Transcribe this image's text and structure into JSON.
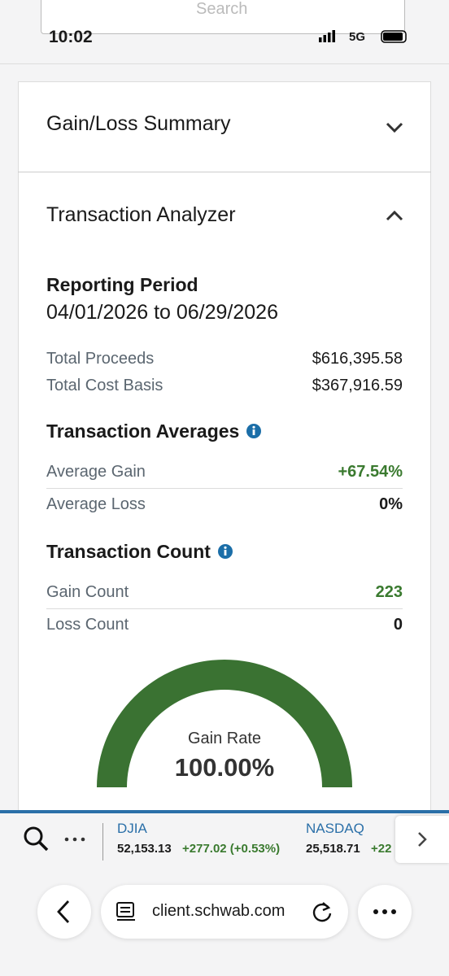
{
  "status_bar": {
    "time": "10:02",
    "network": "5G"
  },
  "search": {
    "placeholder": "Search"
  },
  "sections": {
    "gain_loss_summary": "Gain/Loss Summary",
    "transaction_analyzer": "Transaction Analyzer"
  },
  "reporting_period": {
    "title": "Reporting Period",
    "range": "04/01/2026 to 06/29/2026"
  },
  "totals": {
    "rows": [
      [
        "Total Proceeds",
        "$616,395.58"
      ],
      [
        "Total Cost Basis",
        "$367,916.59"
      ]
    ]
  },
  "transaction_averages": {
    "title": "Transaction Averages",
    "rows": [
      [
        "Average Gain",
        "+67.54%"
      ],
      [
        "Average Loss",
        "0%"
      ]
    ]
  },
  "transaction_count": {
    "title": "Transaction Count",
    "rows": [
      [
        "Gain Count",
        "223"
      ],
      [
        "Loss Count",
        "0"
      ]
    ]
  },
  "gain_rate": {
    "label": "Gain Rate",
    "value": "100.00%"
  },
  "ticker": {
    "items": [
      {
        "name": "DJIA",
        "price": "52,153.13",
        "change": "+277.02 (+0.53%)"
      },
      {
        "name": "NASDAQ",
        "price": "25,518.71",
        "change": "+22"
      }
    ]
  },
  "browser": {
    "url": "client.schwab.com"
  }
}
